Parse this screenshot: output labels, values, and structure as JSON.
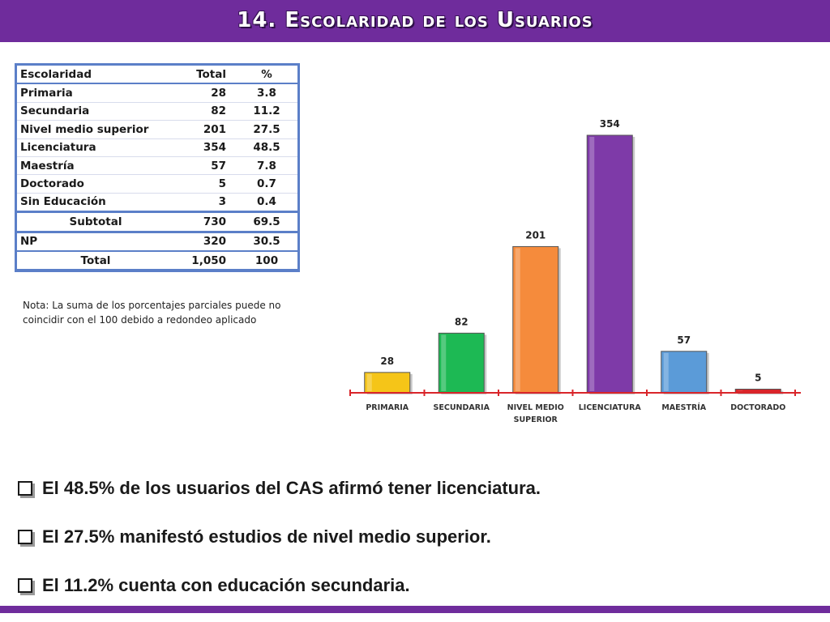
{
  "title": "14. Escolaridad de los Usuarios",
  "table": {
    "headers": [
      "Escolaridad",
      "Total",
      "%"
    ],
    "rows": [
      {
        "label": "Primaria",
        "total": "28",
        "pct": "3.8"
      },
      {
        "label": "Secundaria",
        "total": "82",
        "pct": "11.2"
      },
      {
        "label": "Nivel medio superior",
        "total": "201",
        "pct": "27.5"
      },
      {
        "label": "Licenciatura",
        "total": "354",
        "pct": "48.5"
      },
      {
        "label": "Maestría",
        "total": "57",
        "pct": "7.8"
      },
      {
        "label": "Doctorado",
        "total": "5",
        "pct": "0.7"
      },
      {
        "label": "Sin Educación",
        "total": "3",
        "pct": "0.4"
      }
    ],
    "subtotal": {
      "label": "Subtotal",
      "total": "730",
      "pct": "69.5"
    },
    "np": {
      "label": "NP",
      "total": "320",
      "pct": "30.5"
    },
    "total": {
      "label": "Total",
      "total": "1,050",
      "pct": "100"
    }
  },
  "note": "Nota: La suma de los porcentajes parciales puede no coincidir con el 100 debido a redondeo aplicado",
  "chart_data": {
    "type": "bar",
    "categories": [
      "PRIMARIA",
      "SECUNDARIA",
      "NIVEL MEDIO SUPERIOR",
      "LICENCIATURA",
      "MAESTRÍA",
      "DOCTORADO"
    ],
    "values": [
      28,
      82,
      201,
      354,
      57,
      5
    ],
    "colors": [
      "#f5c518",
      "#1db954",
      "#f58b3c",
      "#7e3aa8",
      "#5b9bd8",
      "#d9252a"
    ],
    "axis_color": "#d9252a",
    "ylim": [
      0,
      354
    ],
    "grid": false,
    "legend": "none"
  },
  "bullets": [
    "El 48.5% de los usuarios del CAS afirmó tener licenciatura.",
    "El 27.5% manifestó estudios de nivel medio superior.",
    "El 11.2% cuenta con educación secundaria."
  ],
  "colors": {
    "header": "#6f2c9c",
    "table_border": "#5b7fc8"
  }
}
